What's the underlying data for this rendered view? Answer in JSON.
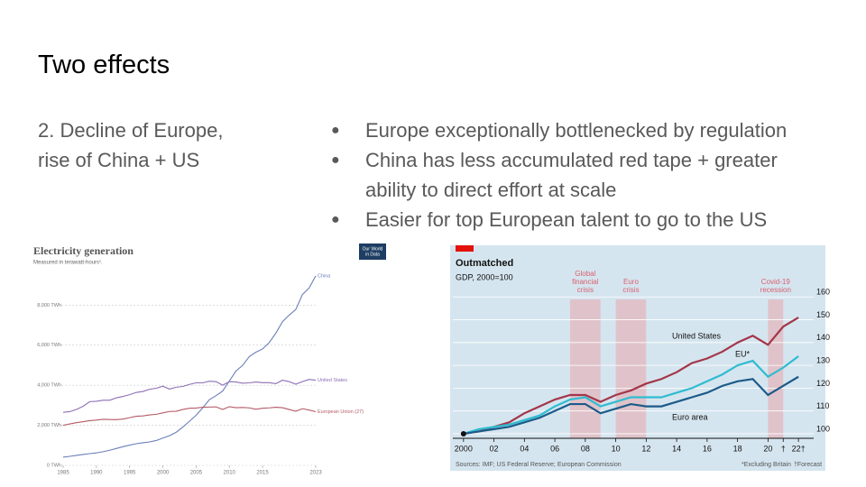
{
  "slide": {
    "title": "Two effects",
    "left_text": "2. Decline of Europe, rise of China + US",
    "bullets": [
      "Europe exceptionally bottlenecked by regulation",
      "China has less accumulated red tape + greater ability to direct effort at scale",
      "Easier for top European talent to go to the US"
    ]
  },
  "chart_data": [
    {
      "type": "line",
      "title": "Electricity generation",
      "subtitle": "Measured in terawatt-hours¹.",
      "logo": [
        "Our World",
        "in Data"
      ],
      "x": [
        1985,
        1986,
        1987,
        1988,
        1989,
        1990,
        1991,
        1992,
        1993,
        1994,
        1995,
        1996,
        1997,
        1998,
        1999,
        2000,
        2001,
        2002,
        2003,
        2004,
        2005,
        2006,
        2007,
        2008,
        2009,
        2010,
        2011,
        2012,
        2013,
        2014,
        2015,
        2016,
        2017,
        2018,
        2019,
        2020,
        2021,
        2022,
        2023
      ],
      "series": [
        {
          "name": "China",
          "color": "#6a7fb9",
          "values": [
            410,
            450,
            500,
            545,
            585,
            620,
            680,
            755,
            840,
            930,
            1010,
            1080,
            1130,
            1170,
            1240,
            1360,
            1480,
            1650,
            1910,
            2200,
            2500,
            2870,
            3280,
            3480,
            3710,
            4210,
            4710,
            4990,
            5430,
            5650,
            5810,
            6130,
            6600,
            7170,
            7500,
            7780,
            8530,
            8850,
            9460
          ]
        },
        {
          "name": "United States",
          "color": "#8c6fb5",
          "values": [
            2650,
            2680,
            2790,
            2950,
            3180,
            3200,
            3250,
            3250,
            3370,
            3440,
            3530,
            3640,
            3690,
            3800,
            3850,
            3950,
            3810,
            3900,
            3940,
            4040,
            4120,
            4120,
            4200,
            4180,
            4000,
            4180,
            4160,
            4100,
            4120,
            4160,
            4130,
            4130,
            4080,
            4250,
            4180,
            4050,
            4180,
            4290,
            4250
          ]
        },
        {
          "name": "European Union (27)",
          "color": "#b55a66",
          "values": [
            2000,
            2070,
            2130,
            2180,
            2230,
            2260,
            2300,
            2290,
            2280,
            2310,
            2380,
            2450,
            2470,
            2520,
            2550,
            2620,
            2690,
            2700,
            2790,
            2850,
            2860,
            2900,
            2910,
            2920,
            2790,
            2930,
            2880,
            2890,
            2870,
            2800,
            2850,
            2870,
            2900,
            2880,
            2790,
            2700,
            2830,
            2760,
            2680
          ]
        }
      ],
      "xlim": [
        1985,
        2023
      ],
      "ylim": [
        0,
        9500
      ],
      "xticks": [
        1985,
        1990,
        1995,
        2000,
        2005,
        2010,
        2015,
        2023
      ],
      "yticks": [
        {
          "value": 0,
          "label": "0 TWh"
        },
        {
          "value": 2000,
          "label": "2,000 TWh"
        },
        {
          "value": 4000,
          "label": "4,000 TWh"
        },
        {
          "value": 6000,
          "label": "6,000 TWh"
        },
        {
          "value": 8000,
          "label": "8,000 TWh"
        }
      ],
      "grid": true
    },
    {
      "type": "line",
      "title": "Outmatched",
      "subtitle": "GDP, 2000=100",
      "source": "Sources: IMF; US Federal Reserve; European Commission",
      "notes": [
        "*Excluding Britain",
        "†Forecast"
      ],
      "x": [
        2000,
        2001,
        2002,
        2003,
        2004,
        2005,
        2006,
        2007,
        2008,
        2009,
        2010,
        2011,
        2012,
        2013,
        2014,
        2015,
        2016,
        2017,
        2018,
        2019,
        2020,
        2021,
        2022
      ],
      "series": [
        {
          "name": "United States",
          "color": "#a3364a",
          "values": [
            100,
            101,
            103,
            105,
            109,
            112,
            115,
            117,
            117,
            114,
            117,
            119,
            122,
            124,
            127,
            131,
            133,
            136,
            140,
            143,
            139,
            147,
            151
          ]
        },
        {
          "name": "EU*",
          "color": "#2fbcd0",
          "values": [
            100,
            102,
            103,
            104,
            106,
            108,
            112,
            115,
            116,
            112,
            114,
            116,
            116,
            116,
            118,
            120,
            123,
            126,
            130,
            132,
            125,
            129,
            134
          ]
        },
        {
          "name": "Euro area",
          "color": "#1c5b8a",
          "values": [
            100,
            101,
            102,
            103,
            105,
            107,
            110,
            113,
            113,
            109,
            111,
            113,
            112,
            112,
            114,
            116,
            118,
            121,
            123,
            124,
            117,
            121,
            125
          ]
        }
      ],
      "shaded_regions": [
        {
          "label": [
            "Global",
            "financial",
            "crisis"
          ],
          "start": 2007,
          "end": 2009
        },
        {
          "label": [
            "Euro",
            "crisis"
          ],
          "start": 2010,
          "end": 2012
        },
        {
          "label": [
            "Covid-19",
            "recession"
          ],
          "start": 2020,
          "end": 2021
        }
      ],
      "xlim": [
        1999.3,
        2023
      ],
      "ylim": [
        98,
        170
      ],
      "xticks": [
        {
          "value": 2000,
          "label": "2000"
        },
        {
          "value": 2002,
          "label": "02"
        },
        {
          "value": 2004,
          "label": "04"
        },
        {
          "value": 2006,
          "label": "06"
        },
        {
          "value": 2008,
          "label": "08"
        },
        {
          "value": 2010,
          "label": "10"
        },
        {
          "value": 2012,
          "label": "12"
        },
        {
          "value": 2014,
          "label": "14"
        },
        {
          "value": 2016,
          "label": "16"
        },
        {
          "value": 2018,
          "label": "18"
        },
        {
          "value": 2020,
          "label": "20"
        },
        {
          "value": 2021,
          "label": "†"
        },
        {
          "value": 2022,
          "label": "22†"
        }
      ],
      "yticks": [
        100,
        110,
        120,
        130,
        140,
        150,
        160
      ],
      "grid": true
    }
  ]
}
